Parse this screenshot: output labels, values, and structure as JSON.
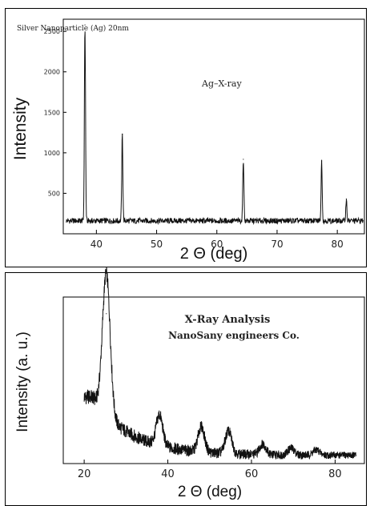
{
  "chart_data": [
    {
      "type": "line",
      "title": "Silver Nanoparticle (Ag) 20nm",
      "annotation": "Ag–X-ray",
      "xlabel": "2 Θ (deg)",
      "ylabel": "Intensity",
      "xlim": [
        34.5,
        84.5
      ],
      "ylim": [
        0,
        2650
      ],
      "xticks": [
        40,
        50,
        60,
        70,
        80
      ],
      "yticks": [
        500,
        1000,
        1500,
        2000,
        2500
      ],
      "grid": false,
      "series": [
        {
          "baseline": 160,
          "peaks": [
            {
              "x": 38.1,
              "y": 2580
            },
            {
              "x": 44.3,
              "y": 1230
            },
            {
              "x": 64.4,
              "y": 920
            },
            {
              "x": 77.4,
              "y": 900
            },
            {
              "x": 81.5,
              "y": 430
            }
          ]
        }
      ]
    },
    {
      "type": "line",
      "title": "X-Ray Analysis",
      "subtitle": "NanoSany engineers Co.",
      "xlabel": "2 Θ (deg)",
      "ylabel": "Intensity (a. u.)",
      "xlim": [
        15,
        87
      ],
      "ylim": [
        0,
        1
      ],
      "xticks": [
        20,
        40,
        60,
        80
      ],
      "yticks": [],
      "grid": false,
      "series": [
        {
          "x_range": [
            20,
            85
          ],
          "start_level": 0.4,
          "tail_level": 0.05,
          "peaks": [
            {
              "x": 25.3,
              "y": 0.9
            },
            {
              "x": 38.0,
              "y": 0.28
            },
            {
              "x": 48.0,
              "y": 0.24
            },
            {
              "x": 54.5,
              "y": 0.22
            },
            {
              "x": 62.7,
              "y": 0.13
            },
            {
              "x": 69.5,
              "y": 0.1
            },
            {
              "x": 75.5,
              "y": 0.09
            }
          ]
        }
      ]
    }
  ]
}
